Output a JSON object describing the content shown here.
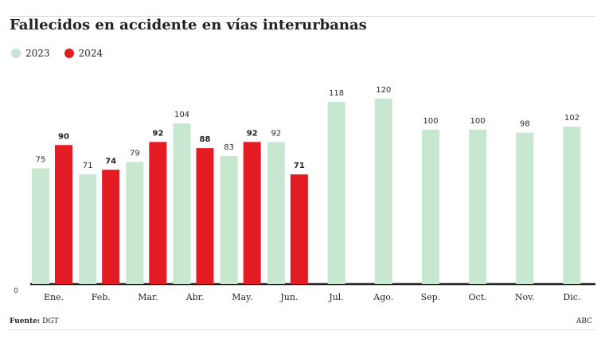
{
  "chart_data": {
    "type": "bar",
    "title": "Fallecidos en accidente en vías interurbanas",
    "categories": [
      "Ene.",
      "Feb.",
      "Mar.",
      "Abr.",
      "May.",
      "Jun.",
      "Jul.",
      "Ago.",
      "Sep.",
      "Oct.",
      "Nov.",
      "Dic."
    ],
    "series": [
      {
        "name": "2023",
        "color": "#c8e7d0",
        "values": [
          75,
          71,
          79,
          104,
          83,
          92,
          118,
          120,
          100,
          100,
          98,
          102
        ]
      },
      {
        "name": "2024",
        "color": "#e31b23",
        "values": [
          90,
          74,
          92,
          88,
          92,
          71,
          null,
          null,
          null,
          null,
          null,
          null
        ]
      }
    ],
    "y_tick_labels": [
      "0"
    ],
    "ylim": [
      0,
      120
    ],
    "legend": "top-left",
    "grid": false
  },
  "footer": {
    "source_label": "Fuente:",
    "source_value": "DGT",
    "brand": "ABC"
  }
}
